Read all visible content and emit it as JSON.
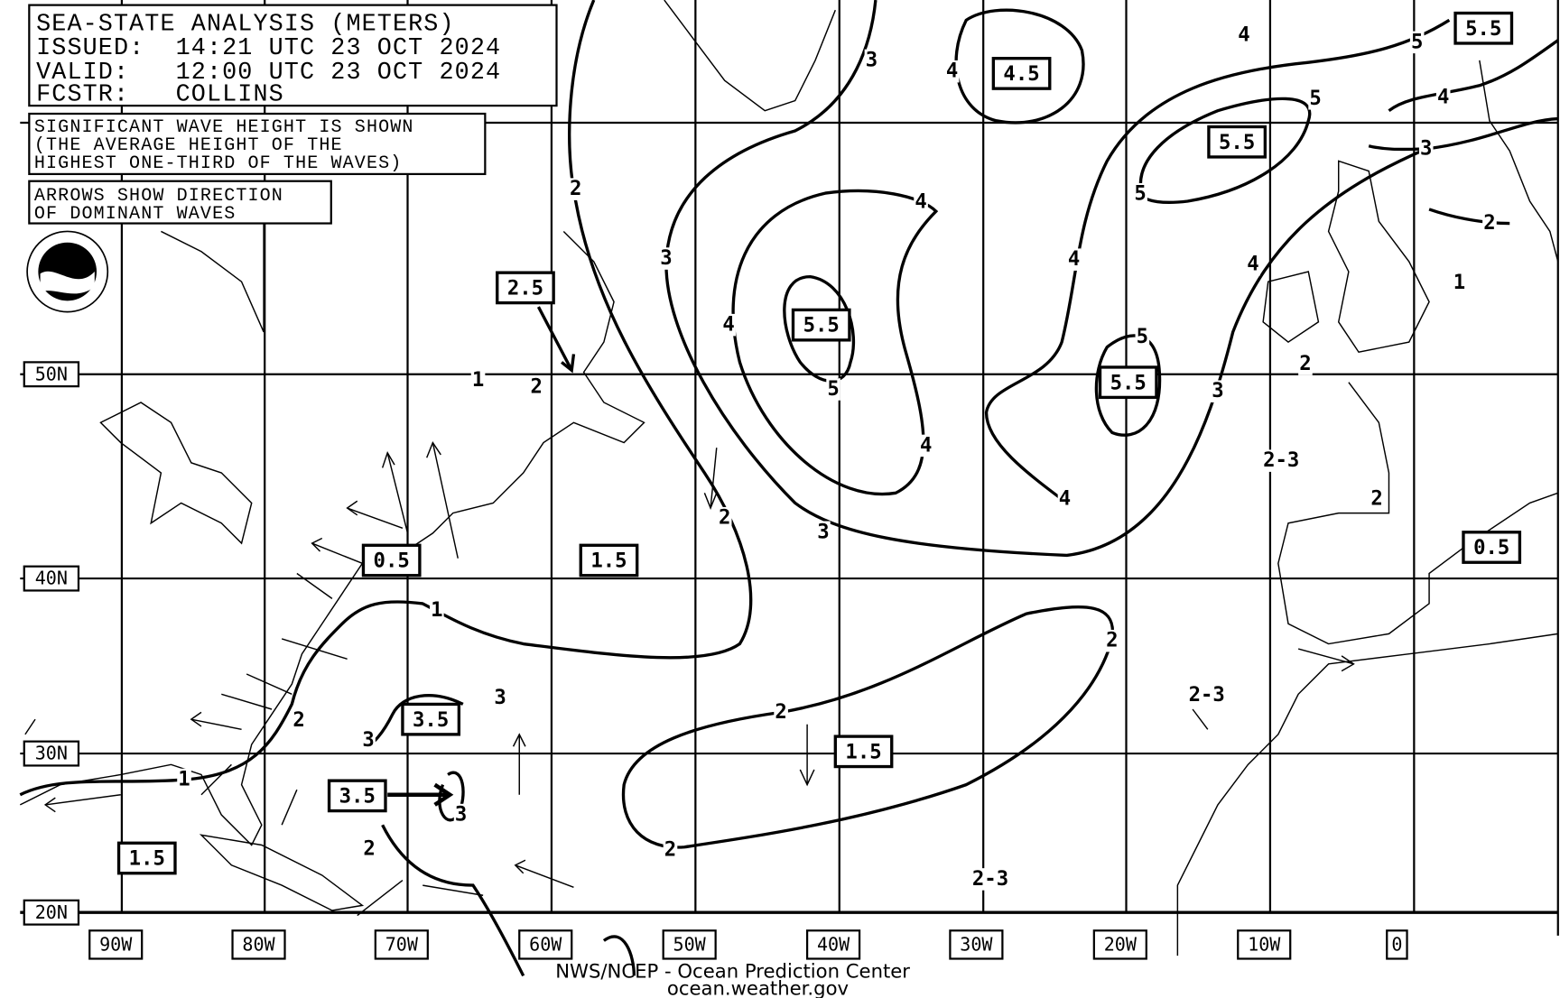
{
  "header": {
    "title": "SEA-STATE ANALYSIS (METERS)",
    "issued": "ISSUED:  14:21 UTC 23 OCT 2024",
    "valid": "VALID:   12:00 UTC 23 OCT 2024",
    "forecaster": "FCSTR:   COLLINS"
  },
  "notes": {
    "wave_height_1": "SIGNIFICANT WAVE HEIGHT IS SHOWN",
    "wave_height_2": "(THE AVERAGE HEIGHT OF THE",
    "wave_height_3": "HIGHEST ONE-THIRD OF THE WAVES)",
    "arrows_1": "ARROWS SHOW DIRECTION",
    "arrows_2": "OF DOMINANT WAVES"
  },
  "logo": "NOAA",
  "latitude_labels": [
    "50N",
    "40N",
    "30N",
    "20N"
  ],
  "longitude_labels": [
    "90W",
    "80W",
    "70W",
    "60W",
    "50W",
    "40W",
    "30W",
    "20W",
    "10W",
    "0"
  ],
  "contour_labels": [
    "3",
    "4",
    "4",
    "5",
    "5",
    "4",
    "3",
    "2",
    "1",
    "2",
    "3",
    "4",
    "4",
    "5",
    "4",
    "3",
    "4",
    "4",
    "5",
    "4",
    "5",
    "3",
    "2",
    "2-3",
    "2",
    "2",
    "2",
    "1",
    "1",
    "2",
    "2",
    "2",
    "2-3",
    "2-3",
    "3",
    "3",
    "2",
    "1",
    "3",
    "2"
  ],
  "boxed_labels": [
    "5.5",
    "4.5",
    "5.5",
    "2.5",
    "5.5",
    "5.5",
    "0.5",
    "1.5",
    "0.5",
    "3.5",
    "1.5",
    "3.5",
    "1.5"
  ],
  "footer": {
    "line1": "NWS/NCEP - Ocean Prediction Center",
    "line2": "ocean.weather.gov"
  }
}
